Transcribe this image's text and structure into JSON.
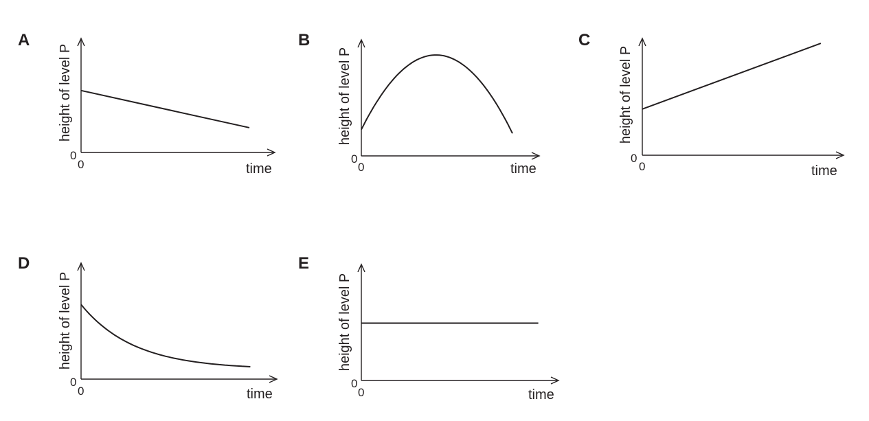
{
  "chart_data": [
    {
      "type": "line",
      "panel_label": "A",
      "xlabel": "time",
      "ylabel": "height of level P",
      "x_origin_label": "0",
      "y_origin_label": "0",
      "xlim": [
        0,
        10
      ],
      "ylim": [
        0,
        10
      ],
      "series": [
        {
          "shape": "straight",
          "x": [
            0,
            8.75
          ],
          "y": [
            5.5,
            2.2
          ]
        }
      ]
    },
    {
      "type": "line",
      "panel_label": "B",
      "xlabel": "time",
      "ylabel": "height of level P",
      "x_origin_label": "0",
      "y_origin_label": "0",
      "xlim": [
        0,
        10
      ],
      "ylim": [
        0,
        10
      ],
      "series": [
        {
          "shape": "parabola",
          "x": [
            0,
            3.95,
            8.0
          ],
          "y": [
            2.3,
            8.8,
            2.3
          ]
        }
      ]
    },
    {
      "type": "line",
      "panel_label": "C",
      "xlabel": "time",
      "ylabel": "height of level P",
      "x_origin_label": "0",
      "y_origin_label": "0",
      "xlim": [
        0,
        10
      ],
      "ylim": [
        0,
        10
      ],
      "series": [
        {
          "shape": "straight",
          "x": [
            0,
            9.45
          ],
          "y": [
            4.0,
            9.7
          ]
        }
      ]
    },
    {
      "type": "line",
      "panel_label": "D",
      "xlabel": "time",
      "ylabel": "height of level P",
      "x_origin_label": "0",
      "y_origin_label": "0",
      "xlim": [
        0,
        10
      ],
      "ylim": [
        0,
        10
      ],
      "series": [
        {
          "shape": "decay",
          "x": [
            0,
            8.8
          ],
          "y": [
            6.5,
            1.0
          ]
        }
      ]
    },
    {
      "type": "line",
      "panel_label": "E",
      "xlabel": "time",
      "ylabel": "height of level P",
      "x_origin_label": "0",
      "y_origin_label": "0",
      "xlim": [
        0,
        10
      ],
      "ylim": [
        0,
        10
      ],
      "series": [
        {
          "shape": "straight",
          "x": [
            0,
            9.2
          ],
          "y": [
            5.0,
            5.0
          ]
        }
      ]
    }
  ]
}
